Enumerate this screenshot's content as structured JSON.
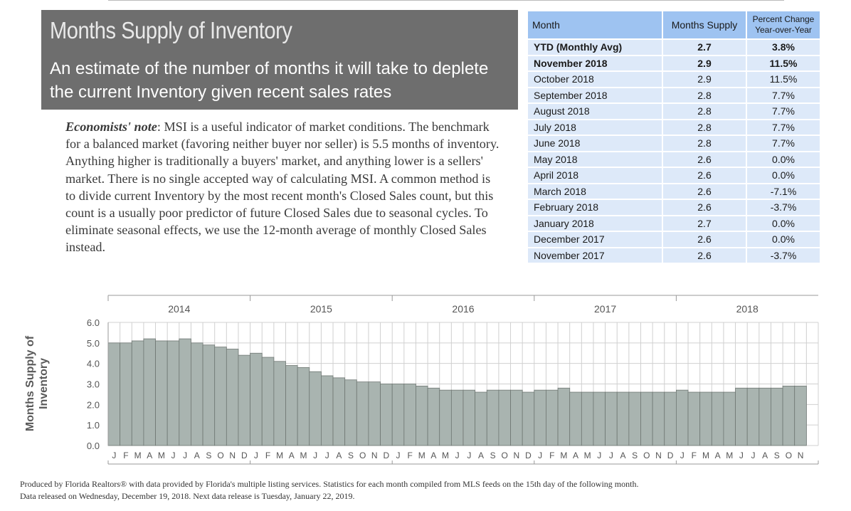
{
  "header": {
    "title": "Months Supply of Inventory",
    "subtitle": "An estimate of the number of months it will take to deplete the current Inventory given recent sales rates"
  },
  "note": {
    "lead": "Economists' note",
    "body": ":  MSI is a useful indicator of market conditions.  The benchmark for a balanced market (favoring neither buyer nor seller) is 5.5 months of inventory.  Anything higher is traditionally a buyers' market, and anything lower is a sellers' market.  There is no single accepted way of calculating MSI.  A common method is to divide current Inventory by the most recent month's Closed Sales count, but this count is a usually poor predictor of future Closed Sales due to seasonal cycles.  To eliminate seasonal effects, we use the 12-month average of monthly Closed Sales instead."
  },
  "table": {
    "headers": [
      "Month",
      "Months Supply",
      "Percent Change Year-over-Year"
    ],
    "rows": [
      {
        "month": "YTD (Monthly Avg)",
        "supply": "2.7",
        "change": "3.8%",
        "bold": true
      },
      {
        "month": "November 2018",
        "supply": "2.9",
        "change": "11.5%",
        "bold": true
      },
      {
        "month": "October 2018",
        "supply": "2.9",
        "change": "11.5%",
        "bold": false
      },
      {
        "month": "September 2018",
        "supply": "2.8",
        "change": "7.7%",
        "bold": false
      },
      {
        "month": "August 2018",
        "supply": "2.8",
        "change": "7.7%",
        "bold": false
      },
      {
        "month": "July 2018",
        "supply": "2.8",
        "change": "7.7%",
        "bold": false
      },
      {
        "month": "June 2018",
        "supply": "2.8",
        "change": "7.7%",
        "bold": false
      },
      {
        "month": "May 2018",
        "supply": "2.6",
        "change": "0.0%",
        "bold": false
      },
      {
        "month": "April 2018",
        "supply": "2.6",
        "change": "0.0%",
        "bold": false
      },
      {
        "month": "March 2018",
        "supply": "2.6",
        "change": "-7.1%",
        "bold": false
      },
      {
        "month": "February 2018",
        "supply": "2.6",
        "change": "-3.7%",
        "bold": false
      },
      {
        "month": "January 2018",
        "supply": "2.7",
        "change": "0.0%",
        "bold": false
      },
      {
        "month": "December 2017",
        "supply": "2.6",
        "change": "0.0%",
        "bold": false
      },
      {
        "month": "November 2017",
        "supply": "2.6",
        "change": "-3.7%",
        "bold": false
      }
    ]
  },
  "chart_data": {
    "type": "bar",
    "ylabel": "Months Supply of Inventory",
    "xlabel": "",
    "ylim": [
      0,
      6
    ],
    "yticks": [
      0,
      1,
      2,
      3,
      4,
      5,
      6
    ],
    "years": [
      "2014",
      "2015",
      "2016",
      "2017",
      "2018"
    ],
    "categories": [
      "J",
      "F",
      "M",
      "A",
      "M",
      "J",
      "J",
      "A",
      "S",
      "O",
      "N",
      "D",
      "J",
      "F",
      "M",
      "A",
      "M",
      "J",
      "J",
      "A",
      "S",
      "O",
      "N",
      "D",
      "J",
      "F",
      "M",
      "A",
      "M",
      "J",
      "J",
      "A",
      "S",
      "O",
      "N",
      "D",
      "J",
      "F",
      "M",
      "A",
      "M",
      "J",
      "J",
      "A",
      "S",
      "O",
      "N",
      "D",
      "J",
      "F",
      "M",
      "A",
      "M",
      "J",
      "J",
      "A",
      "S",
      "O",
      "N"
    ],
    "values": [
      5.0,
      5.0,
      5.1,
      5.2,
      5.1,
      5.1,
      5.2,
      5.0,
      4.9,
      4.8,
      4.7,
      4.4,
      4.5,
      4.3,
      4.1,
      3.9,
      3.8,
      3.6,
      3.4,
      3.3,
      3.2,
      3.1,
      3.1,
      3.0,
      3.0,
      3.0,
      2.9,
      2.8,
      2.7,
      2.7,
      2.7,
      2.6,
      2.7,
      2.7,
      2.7,
      2.6,
      2.7,
      2.7,
      2.8,
      2.6,
      2.6,
      2.6,
      2.6,
      2.6,
      2.6,
      2.6,
      2.6,
      2.6,
      2.7,
      2.6,
      2.6,
      2.6,
      2.6,
      2.8,
      2.8,
      2.8,
      2.8,
      2.9,
      2.9
    ],
    "grid": true,
    "bar_color": "#a9b4b0"
  },
  "footer": {
    "line1": "Produced by Florida Realtors® with data provided by Florida's multiple listing services. Statistics for each month compiled from MLS feeds on the 15th day of the following month.",
    "line2": "Data released on Wednesday, December 19, 2018. Next data release is Tuesday, January 22, 2019."
  }
}
